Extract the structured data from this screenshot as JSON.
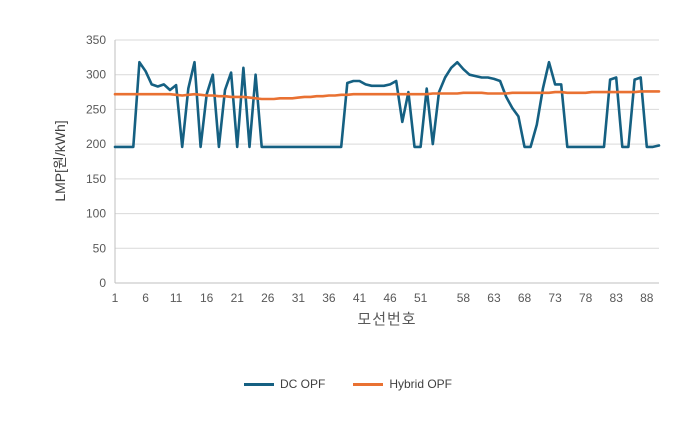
{
  "chart_data": {
    "type": "line",
    "title": "",
    "xlabel": "모선번호",
    "ylabel": "LMP[원/kWh]",
    "ylim": [
      0,
      350
    ],
    "yticks": [
      0,
      50,
      100,
      150,
      200,
      250,
      300,
      350
    ],
    "xtick_labels": [
      "1",
      "6",
      "11",
      "16",
      "21",
      "26",
      "31",
      "36",
      "41",
      "46",
      "51",
      "58",
      "63",
      "68",
      "73",
      "78",
      "83",
      "88"
    ],
    "x_range": [
      1,
      90
    ],
    "grid": "horizontal",
    "legend_position": "bottom",
    "colors": {
      "gridline": "#D9D9D9",
      "axis_line": "#BFBFBF",
      "tick_text": "#595959"
    },
    "series": [
      {
        "name": "DC OPF",
        "color": "#156082",
        "values": [
          196,
          196,
          196,
          196,
          318,
          305,
          286,
          283,
          286,
          278,
          285,
          196,
          280,
          318,
          196,
          272,
          300,
          196,
          278,
          303,
          196,
          310,
          196,
          300,
          196,
          196,
          196,
          196,
          196,
          196,
          196,
          196,
          196,
          196,
          196,
          196,
          196,
          196,
          288,
          291,
          291,
          286,
          284,
          284,
          284,
          286,
          291,
          232,
          275,
          196,
          196,
          280,
          200,
          275,
          296,
          310,
          318,
          308,
          300,
          298,
          296,
          296,
          294,
          291,
          268,
          252,
          240,
          196,
          196,
          228,
          280,
          318,
          286,
          286,
          196,
          196,
          196,
          196,
          196,
          196,
          196,
          293,
          296,
          196,
          196,
          293,
          296,
          196,
          196,
          198
        ]
      },
      {
        "name": "Hybrid OPF",
        "color": "#E97132",
        "values": [
          272,
          272,
          272,
          272,
          272,
          272,
          272,
          272,
          272,
          272,
          271,
          270,
          271,
          272,
          271,
          270,
          270,
          269,
          269,
          268,
          268,
          268,
          267,
          266,
          265,
          265,
          265,
          266,
          266,
          266,
          267,
          268,
          268,
          269,
          269,
          270,
          270,
          271,
          271,
          272,
          272,
          272,
          272,
          272,
          272,
          272,
          272,
          272,
          272,
          272,
          272,
          272,
          273,
          273,
          273,
          273,
          273,
          274,
          274,
          274,
          274,
          273,
          273,
          273,
          273,
          274,
          274,
          274,
          274,
          274,
          274,
          274,
          275,
          275,
          274,
          274,
          274,
          274,
          275,
          275,
          275,
          275,
          275,
          275,
          275,
          275,
          276,
          276,
          276,
          276
        ]
      }
    ]
  }
}
